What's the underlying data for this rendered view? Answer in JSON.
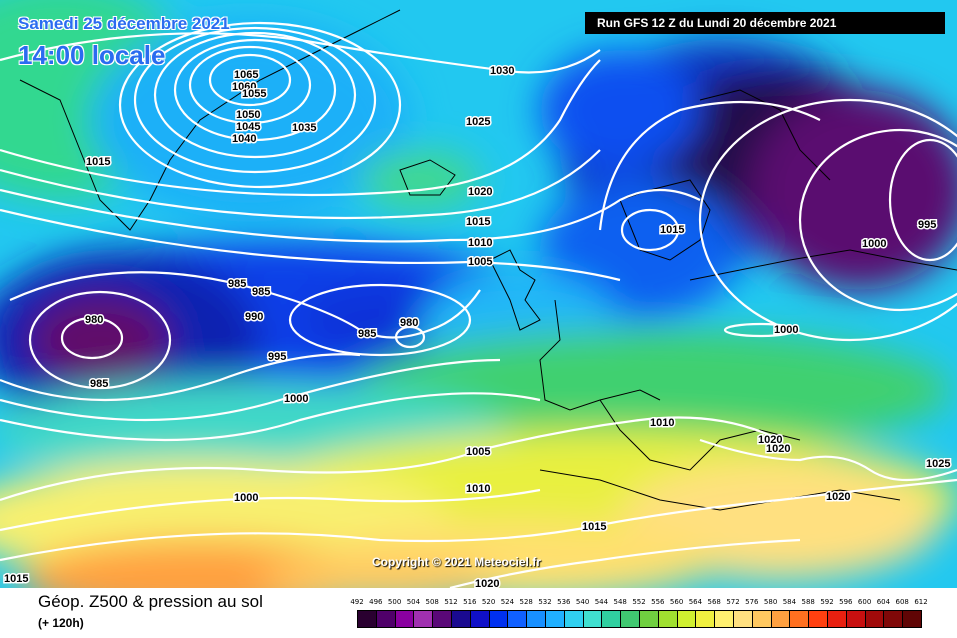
{
  "header": {
    "date": "Samedi 25 décembre 2021",
    "time": "14:00 locale",
    "run": "Run GFS 12 Z du Lundi 20 décembre 2021"
  },
  "copyright": "Copyright © 2021 Meteociel.fr",
  "footer": {
    "title": "Géop. Z500 & pression au sol",
    "subtitle": "(+ 120h)"
  },
  "legend": {
    "values": [
      "492",
      "496",
      "500",
      "504",
      "508",
      "512",
      "516",
      "520",
      "524",
      "528",
      "532",
      "536",
      "540",
      "544",
      "548",
      "552",
      "556",
      "560",
      "564",
      "568",
      "572",
      "576",
      "580",
      "584",
      "588",
      "592",
      "596",
      "600",
      "604",
      "608",
      "612"
    ],
    "colors": [
      "#2a0030",
      "#50006a",
      "#8a00a0",
      "#a030b0",
      "#5a0878",
      "#1a0a90",
      "#1010c8",
      "#0030f0",
      "#1060ff",
      "#1890ff",
      "#20b0ff",
      "#30d0f0",
      "#40e0d0",
      "#30d0a0",
      "#40c870",
      "#70d040",
      "#a0e030",
      "#d0f030",
      "#f0f040",
      "#fff070",
      "#ffe080",
      "#ffc860",
      "#ffa040",
      "#ff7020",
      "#ff4010",
      "#e82010",
      "#c81010",
      "#a00a0a",
      "#800808",
      "#600505"
    ]
  },
  "isobars": {
    "labels": [
      "1065",
      "1060",
      "1055",
      "1050",
      "1045",
      "1040",
      "1035",
      "1030",
      "1025",
      "1020",
      "1015",
      "1010",
      "1005",
      "1015",
      "985",
      "985",
      "980",
      "980",
      "985",
      "990",
      "995",
      "1000",
      "985",
      "1015",
      "1000",
      "995",
      "1000",
      "1010",
      "1020",
      "1020",
      "1025",
      "1005",
      "1010",
      "1015",
      "1020",
      "1000",
      "1015",
      "1020"
    ]
  }
}
